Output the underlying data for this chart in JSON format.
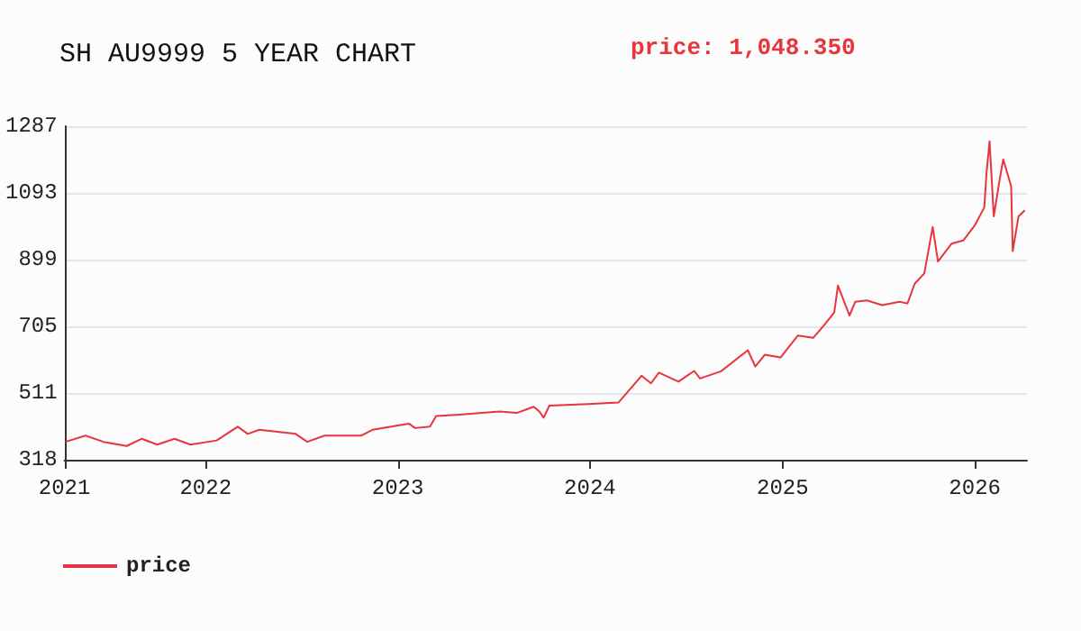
{
  "chart_data": {
    "type": "line",
    "title": "SH AU9999 5 YEAR CHART",
    "annotations": [
      "price: 1,048.350"
    ],
    "x": [
      "2021-04-10",
      "2021-05-18",
      "2021-06-21",
      "2021-08-04",
      "2021-09-02",
      "2021-10-01",
      "2021-11-03",
      "2021-12-03",
      "2022-01-22",
      "2022-03-03",
      "2022-03-22",
      "2022-04-13",
      "2022-06-21",
      "2022-07-13",
      "2022-08-15",
      "2022-10-23",
      "2022-11-14",
      "2023-01-22",
      "2023-02-03",
      "2023-03-03",
      "2023-03-15",
      "2023-04-28",
      "2023-07-13",
      "2023-08-15",
      "2023-09-16",
      "2023-09-27",
      "2023-10-05",
      "2023-10-16",
      "2023-12-28",
      "2024-02-24",
      "2024-03-07",
      "2024-04-08",
      "2024-04-26",
      "2024-05-11",
      "2024-06-17",
      "2024-07-17",
      "2024-07-28",
      "2024-09-06",
      "2024-10-27",
      "2024-11-10",
      "2024-11-28",
      "2024-12-28",
      "2025-01-30",
      "2025-02-28",
      "2025-03-22",
      "2025-04-09",
      "2025-04-16",
      "2025-05-08",
      "2025-05-19",
      "2025-06-10",
      "2025-07-09",
      "2025-08-11",
      "2025-08-26",
      "2025-09-09",
      "2025-09-27",
      "2025-10-13",
      "2025-10-23",
      "2025-11-18",
      "2025-12-10",
      "2026-01-01",
      "2026-01-19",
      "2026-01-23",
      "2026-01-29",
      "2026-02-06",
      "2026-02-17",
      "2026-02-24",
      "2026-03-11",
      "2026-03-14",
      "2026-03-25",
      "2026-04-06"
    ],
    "series": [
      {
        "name": "price",
        "color": "#e8343c",
        "values": [
          370,
          388,
          370,
          358,
          379,
          362,
          379,
          362,
          374,
          414,
          393,
          405,
          393,
          370,
          388,
          388,
          405,
          423,
          410,
          414,
          445,
          449,
          458,
          454,
          472,
          458,
          440,
          475,
          480,
          484,
          505,
          562,
          540,
          571,
          545,
          576,
          554,
          575,
          636,
          589,
          623,
          615,
          679,
          672,
          711,
          746,
          824,
          737,
          777,
          781,
          767,
          777,
          772,
          830,
          859,
          994,
          894,
          946,
          955,
          999,
          1051,
          1147,
          1243,
          1025,
          1130,
          1191,
          1112,
          924,
          1025,
          1043
        ]
      }
    ],
    "xlim": [
      "2021-04-08",
      "2026-04-10"
    ],
    "xticks": [
      {
        "value": "2021-04-08",
        "label": "2021"
      },
      {
        "value": "2022-01-01",
        "label": "2022"
      },
      {
        "value": "2023-01-01",
        "label": "2023"
      },
      {
        "value": "2024-01-01",
        "label": "2024"
      },
      {
        "value": "2025-01-01",
        "label": "2025"
      },
      {
        "value": "2026-01-01",
        "label": "2026"
      }
    ],
    "ylim": [
      318,
      1287
    ],
    "yticks": [
      318,
      511,
      705,
      899,
      1093,
      1287
    ],
    "grid": "y",
    "legend": "bottom left",
    "line_style": "solid"
  }
}
